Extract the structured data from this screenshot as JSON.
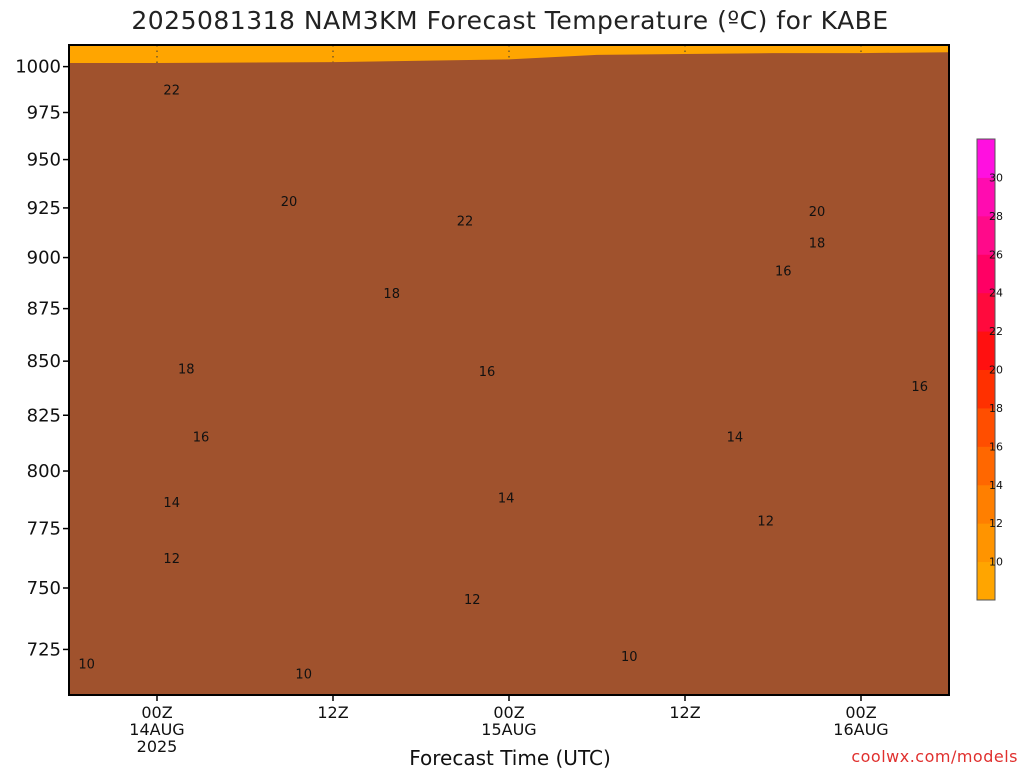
{
  "chart_data": {
    "type": "heatmap",
    "title": "2025081318 NAM3KM Forecast Temperature (ºC) for KABE",
    "xlabel": "Forecast Time (UTC)",
    "credit": "coolwx.com/models",
    "y_axis": {
      "label": "",
      "scale": "log-pressure",
      "reversed": true,
      "range": [
        1012,
        707
      ],
      "ticks": [
        725,
        750,
        775,
        800,
        825,
        850,
        875,
        900,
        925,
        950,
        975,
        1000
      ]
    },
    "x_axis": {
      "range_hours": [
        -6,
        54
      ],
      "ticks": [
        {
          "hour": 0,
          "lines": [
            "00Z",
            "14AUG",
            "2025"
          ]
        },
        {
          "hour": 12,
          "lines": [
            "12Z"
          ]
        },
        {
          "hour": 24,
          "lines": [
            "00Z",
            "15AUG"
          ]
        },
        {
          "hour": 36,
          "lines": [
            "12Z"
          ]
        },
        {
          "hour": 48,
          "lines": [
            "00Z",
            "16AUG"
          ]
        }
      ]
    },
    "grid": "dotted",
    "colorbar": {
      "placement": "right",
      "levels": [
        8,
        10,
        12,
        14,
        16,
        18,
        20,
        22,
        24,
        26,
        28,
        30,
        32
      ],
      "tick_labels": [
        "10",
        "12",
        "14",
        "16",
        "18",
        "20",
        "22",
        "24",
        "26",
        "28",
        "30"
      ],
      "colors": [
        "#ffa500",
        "#ff9400",
        "#ff7f00",
        "#ff6700",
        "#ff4e00",
        "#ff3000",
        "#ff1010",
        "#ff0a3d",
        "#ff0064",
        "#ff0a8a",
        "#ff0cb0",
        "#ff10e0"
      ]
    },
    "contour_levels": [
      10,
      12,
      14,
      16,
      18,
      20,
      22
    ],
    "contour_labels": [
      {
        "text": "10",
        "hour": -4.8,
        "p": 719
      },
      {
        "text": "10",
        "hour": 10.0,
        "p": 715
      },
      {
        "text": "10",
        "hour": 32.2,
        "p": 722
      },
      {
        "text": "12",
        "hour": 1.0,
        "p": 762
      },
      {
        "text": "12",
        "hour": 21.5,
        "p": 745
      },
      {
        "text": "12",
        "hour": 41.5,
        "p": 778
      },
      {
        "text": "14",
        "hour": 1.0,
        "p": 786
      },
      {
        "text": "14",
        "hour": 23.8,
        "p": 788
      },
      {
        "text": "14",
        "hour": 39.4,
        "p": 815
      },
      {
        "text": "16",
        "hour": 3.0,
        "p": 815
      },
      {
        "text": "16",
        "hour": 22.5,
        "p": 845
      },
      {
        "text": "16",
        "hour": 52.0,
        "p": 838
      },
      {
        "text": "16",
        "hour": 42.7,
        "p": 893
      },
      {
        "text": "18",
        "hour": 2.0,
        "p": 846
      },
      {
        "text": "18",
        "hour": 16.0,
        "p": 882
      },
      {
        "text": "18",
        "hour": 45.0,
        "p": 907
      },
      {
        "text": "20",
        "hour": 9.0,
        "p": 928
      },
      {
        "text": "20",
        "hour": 45.0,
        "p": 923
      },
      {
        "text": "22",
        "hour": 21.0,
        "p": 918
      },
      {
        "text": "22",
        "hour": 1.0,
        "p": 987
      }
    ],
    "surface_pressure": [
      {
        "hour": -6,
        "p": 1002
      },
      {
        "hour": 0,
        "p": 1002
      },
      {
        "hour": 12,
        "p": 1002.5
      },
      {
        "hour": 24,
        "p": 1004
      },
      {
        "hour": 30,
        "p": 1006.5
      },
      {
        "hour": 36,
        "p": 1007
      },
      {
        "hour": 42,
        "p": 1007.5
      },
      {
        "hour": 48,
        "p": 1007.5
      },
      {
        "hour": 54,
        "p": 1008
      }
    ]
  }
}
